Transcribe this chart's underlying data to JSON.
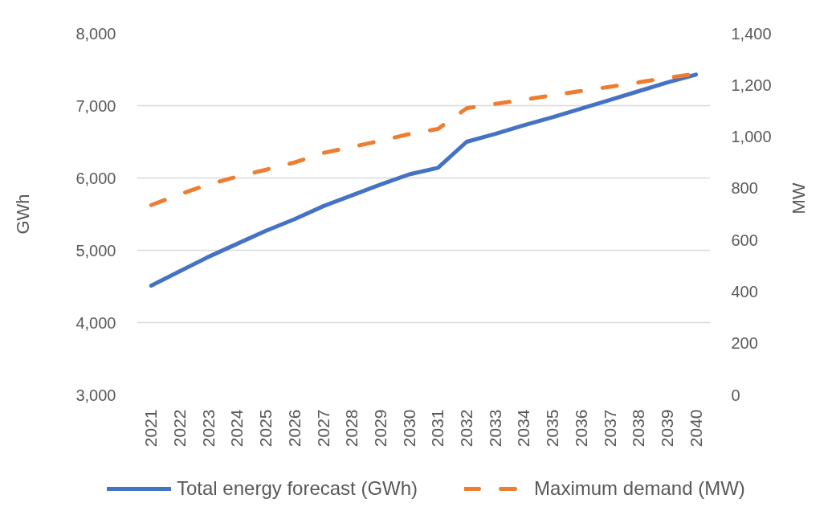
{
  "chart_data": {
    "type": "line",
    "categories": [
      "2021",
      "2022",
      "2023",
      "2024",
      "2025",
      "2026",
      "2027",
      "2028",
      "2029",
      "2030",
      "2031",
      "2032",
      "2033",
      "2034",
      "2035",
      "2036",
      "2037",
      "2038",
      "2039",
      "2040"
    ],
    "series": [
      {
        "name": "Total energy forecast (GWh)",
        "color": "#4472c4",
        "line_style": "solid",
        "values": [
          4510,
          4710,
          4910,
          5090,
          5270,
          5430,
          5610,
          5760,
          5910,
          6050,
          6140,
          6500,
          6610,
          6730,
          6840,
          6960,
          7080,
          7200,
          7320,
          7430
        ]
      },
      {
        "name": "Maximum demand (MW)",
        "color": "#ed7d31",
        "line_style": "dashed",
        "axis": "y2",
        "values": [
          735,
          777,
          815,
          845,
          872,
          900,
          937,
          960,
          984,
          1010,
          1030,
          1110,
          1127,
          1143,
          1160,
          1177,
          1193,
          1210,
          1228,
          1243
        ]
      }
    ],
    "ylabel": "GWh",
    "y2label": "MW",
    "ylim": [
      3000,
      8000
    ],
    "yticks": [
      {
        "value": 3000,
        "label": "3,000"
      },
      {
        "value": 4000,
        "label": "4,000"
      },
      {
        "value": 5000,
        "label": "5,000"
      },
      {
        "value": 6000,
        "label": "6,000"
      },
      {
        "value": 7000,
        "label": "7,000"
      },
      {
        "value": 8000,
        "label": "8,000"
      }
    ],
    "y2lim": [
      0,
      1400
    ],
    "y2ticks": [
      0,
      200,
      400,
      600,
      800,
      {
        "value": 1000,
        "label": "1,000"
      },
      {
        "value": 1200,
        "label": "1,200"
      },
      {
        "value": 1400,
        "label": "1,400"
      }
    ],
    "grid": "y",
    "legend": "bottom"
  }
}
